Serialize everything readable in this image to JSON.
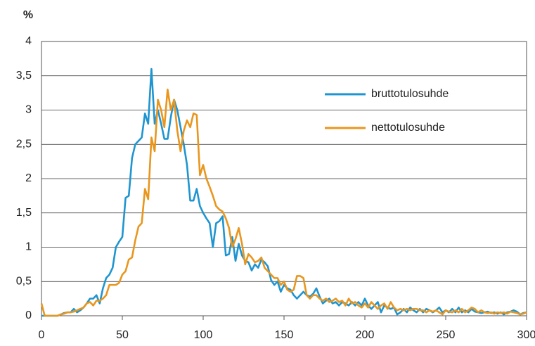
{
  "chart_data": {
    "type": "line",
    "y_label": "%",
    "x": [
      0,
      2,
      4,
      6,
      8,
      10,
      12,
      14,
      16,
      18,
      20,
      22,
      24,
      26,
      28,
      30,
      32,
      34,
      36,
      38,
      40,
      42,
      44,
      46,
      48,
      50,
      52,
      54,
      56,
      58,
      60,
      62,
      64,
      66,
      68,
      70,
      72,
      74,
      76,
      78,
      80,
      82,
      84,
      86,
      88,
      90,
      92,
      94,
      96,
      98,
      100,
      102,
      104,
      106,
      108,
      110,
      112,
      114,
      116,
      118,
      120,
      122,
      124,
      126,
      128,
      130,
      132,
      134,
      136,
      138,
      140,
      142,
      144,
      146,
      148,
      150,
      152,
      154,
      156,
      158,
      160,
      162,
      164,
      166,
      168,
      170,
      172,
      174,
      176,
      178,
      180,
      182,
      184,
      186,
      188,
      190,
      192,
      194,
      196,
      198,
      200,
      202,
      204,
      206,
      208,
      210,
      212,
      214,
      216,
      218,
      220,
      222,
      224,
      226,
      228,
      230,
      232,
      234,
      236,
      238,
      240,
      242,
      244,
      246,
      248,
      250,
      252,
      254,
      256,
      258,
      260,
      262,
      264,
      266,
      268,
      270,
      272,
      274,
      276,
      278,
      280,
      282,
      284,
      286,
      288,
      290,
      292,
      294,
      296,
      298,
      300
    ],
    "series": [
      {
        "name": "bruttotulosuhde",
        "color": "#1f95d0",
        "values": [
          0,
          0,
          0,
          0,
          0,
          0,
          0.02,
          0.04,
          0.05,
          0.05,
          0.1,
          0.05,
          0.08,
          0.12,
          0.18,
          0.25,
          0.25,
          0.3,
          0.18,
          0.4,
          0.55,
          0.6,
          0.7,
          1.0,
          1.08,
          1.15,
          1.72,
          1.75,
          2.3,
          2.5,
          2.55,
          2.6,
          2.95,
          2.8,
          3.6,
          2.8,
          3.0,
          2.8,
          2.58,
          2.58,
          2.9,
          3.15,
          3.0,
          2.75,
          2.5,
          2.2,
          1.68,
          1.68,
          1.85,
          1.6,
          1.5,
          1.42,
          1.35,
          1.0,
          1.35,
          1.38,
          1.45,
          0.88,
          0.9,
          1.15,
          0.8,
          1.05,
          0.88,
          0.8,
          0.78,
          0.66,
          0.75,
          0.7,
          0.82,
          0.78,
          0.72,
          0.52,
          0.45,
          0.5,
          0.35,
          0.45,
          0.4,
          0.38,
          0.3,
          0.25,
          0.3,
          0.35,
          0.3,
          0.28,
          0.32,
          0.4,
          0.28,
          0.18,
          0.22,
          0.25,
          0.18,
          0.2,
          0.15,
          0.2,
          0.18,
          0.15,
          0.2,
          0.15,
          0.2,
          0.15,
          0.25,
          0.15,
          0.1,
          0.15,
          0.2,
          0.05,
          0.15,
          0.12,
          0.1,
          0.12,
          0.02,
          0.05,
          0.1,
          0.05,
          0.12,
          0.08,
          0.05,
          0.1,
          0.05,
          0.1,
          0.08,
          0.05,
          0.08,
          0.12,
          0.05,
          0.08,
          0.05,
          0.1,
          0.05,
          0.12,
          0.05,
          0.08,
          0.05,
          0.1,
          0.06,
          0.05,
          0.04,
          0.05,
          0.06,
          0.04,
          0.05,
          0.03,
          0.05,
          0.02,
          0.05,
          0.06,
          0.08,
          0.06,
          0.02,
          0.04,
          0.05
        ]
      },
      {
        "name": "nettotulosuhde",
        "color": "#e8961e",
        "values": [
          0.18,
          0,
          0,
          0,
          0,
          0,
          0.02,
          0.03,
          0.05,
          0.05,
          0.06,
          0.08,
          0.1,
          0.12,
          0.18,
          0.2,
          0.15,
          0.22,
          0.22,
          0.25,
          0.3,
          0.45,
          0.45,
          0.45,
          0.48,
          0.6,
          0.65,
          0.82,
          0.85,
          1.1,
          1.3,
          1.35,
          1.85,
          1.7,
          2.6,
          2.4,
          3.15,
          3.0,
          2.75,
          3.3,
          3.0,
          3.15,
          2.7,
          2.4,
          2.7,
          2.85,
          2.75,
          2.95,
          2.93,
          2.05,
          2.2,
          2.0,
          1.88,
          1.75,
          1.6,
          1.55,
          1.52,
          1.42,
          1.28,
          1.0,
          1.12,
          1.28,
          1.05,
          0.75,
          0.9,
          0.85,
          0.78,
          0.8,
          0.85,
          0.7,
          0.65,
          0.6,
          0.55,
          0.55,
          0.45,
          0.5,
          0.38,
          0.35,
          0.38,
          0.58,
          0.58,
          0.55,
          0.3,
          0.25,
          0.3,
          0.3,
          0.25,
          0.22,
          0.25,
          0.2,
          0.22,
          0.25,
          0.2,
          0.22,
          0.15,
          0.25,
          0.18,
          0.2,
          0.15,
          0.12,
          0.18,
          0.12,
          0.2,
          0.15,
          0.1,
          0.15,
          0.18,
          0.1,
          0.2,
          0.12,
          0.08,
          0.1,
          0.08,
          0.1,
          0.08,
          0.1,
          0.1,
          0.08,
          0.08,
          0.05,
          0.08,
          0.06,
          0.08,
          0.05,
          0.02,
          0.08,
          0.06,
          0.05,
          0.08,
          0.05,
          0.1,
          0.05,
          0.08,
          0.12,
          0.1,
          0.05,
          0.08,
          0.05,
          0.04,
          0.05,
          0.03,
          0.05,
          0.04,
          0.05,
          0.03,
          0.06,
          0.05,
          0.04,
          0.02,
          0.03,
          0.05
        ]
      }
    ],
    "xlim": [
      0,
      300
    ],
    "xticks": [
      0,
      50,
      100,
      150,
      200,
      250,
      300
    ],
    "ylim": [
      0,
      4
    ],
    "yticks": [
      0,
      {
        "value": 0.5,
        "label": "0,5"
      },
      1,
      {
        "value": 1.5,
        "label": "1,5"
      },
      2,
      {
        "value": 2.5,
        "label": "2,5"
      },
      3,
      {
        "value": 3.5,
        "label": "3,5"
      },
      4
    ],
    "grid": true,
    "legend": "upper right"
  }
}
